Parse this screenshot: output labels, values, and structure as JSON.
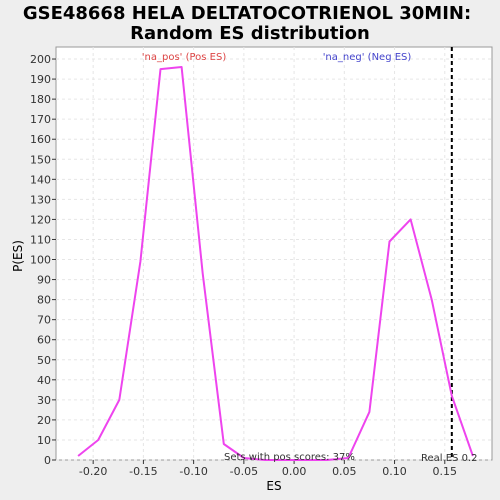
{
  "chart_data": {
    "type": "line",
    "title": "GSE48668 HELA DELTATOCOTRIENOL 30MIN:",
    "subtitle": "Random ES distribution",
    "xlabel": "ES",
    "ylabel": "P(ES)",
    "xlim": [
      -0.237,
      0.197
    ],
    "ylim": [
      0,
      206
    ],
    "xticks": [
      -0.2,
      -0.15,
      -0.1,
      -0.05,
      0.0,
      0.05,
      0.1,
      0.15
    ],
    "xtick_labels": [
      "-0.20",
      "-0.15",
      "-0.10",
      "-0.05",
      "0.00",
      "0.05",
      "0.10",
      "0.15"
    ],
    "yticks": [
      0,
      10,
      20,
      30,
      40,
      50,
      60,
      70,
      80,
      90,
      100,
      110,
      120,
      130,
      140,
      150,
      160,
      170,
      180,
      190,
      200
    ],
    "grid": true,
    "series": [
      {
        "name": "'na_pos' (Pos ES)",
        "color": "#ee44ee",
        "x": [
          -0.215,
          -0.195,
          -0.174,
          -0.153,
          -0.133,
          -0.112,
          -0.091,
          -0.07,
          -0.05,
          -0.029,
          -0.008,
          0.012,
          0.033,
          0.054,
          0.075,
          0.095,
          0.116,
          0.137,
          0.157,
          0.178
        ],
        "y": [
          2,
          10,
          30,
          99,
          195,
          196,
          93,
          8,
          1,
          0,
          0,
          0,
          0,
          1,
          24,
          109,
          120,
          80,
          32,
          2
        ]
      }
    ],
    "annotations": {
      "pos_label": "'na_pos' (Pos ES)",
      "neg_label": "'na_neg' (Neg ES)",
      "pos_color": "#dd4444",
      "neg_color": "#4444cc",
      "sets_note": "Sets with pos scores: 37%",
      "real_es_label": "Real ES 0.2",
      "real_es_value": 0.157
    }
  }
}
